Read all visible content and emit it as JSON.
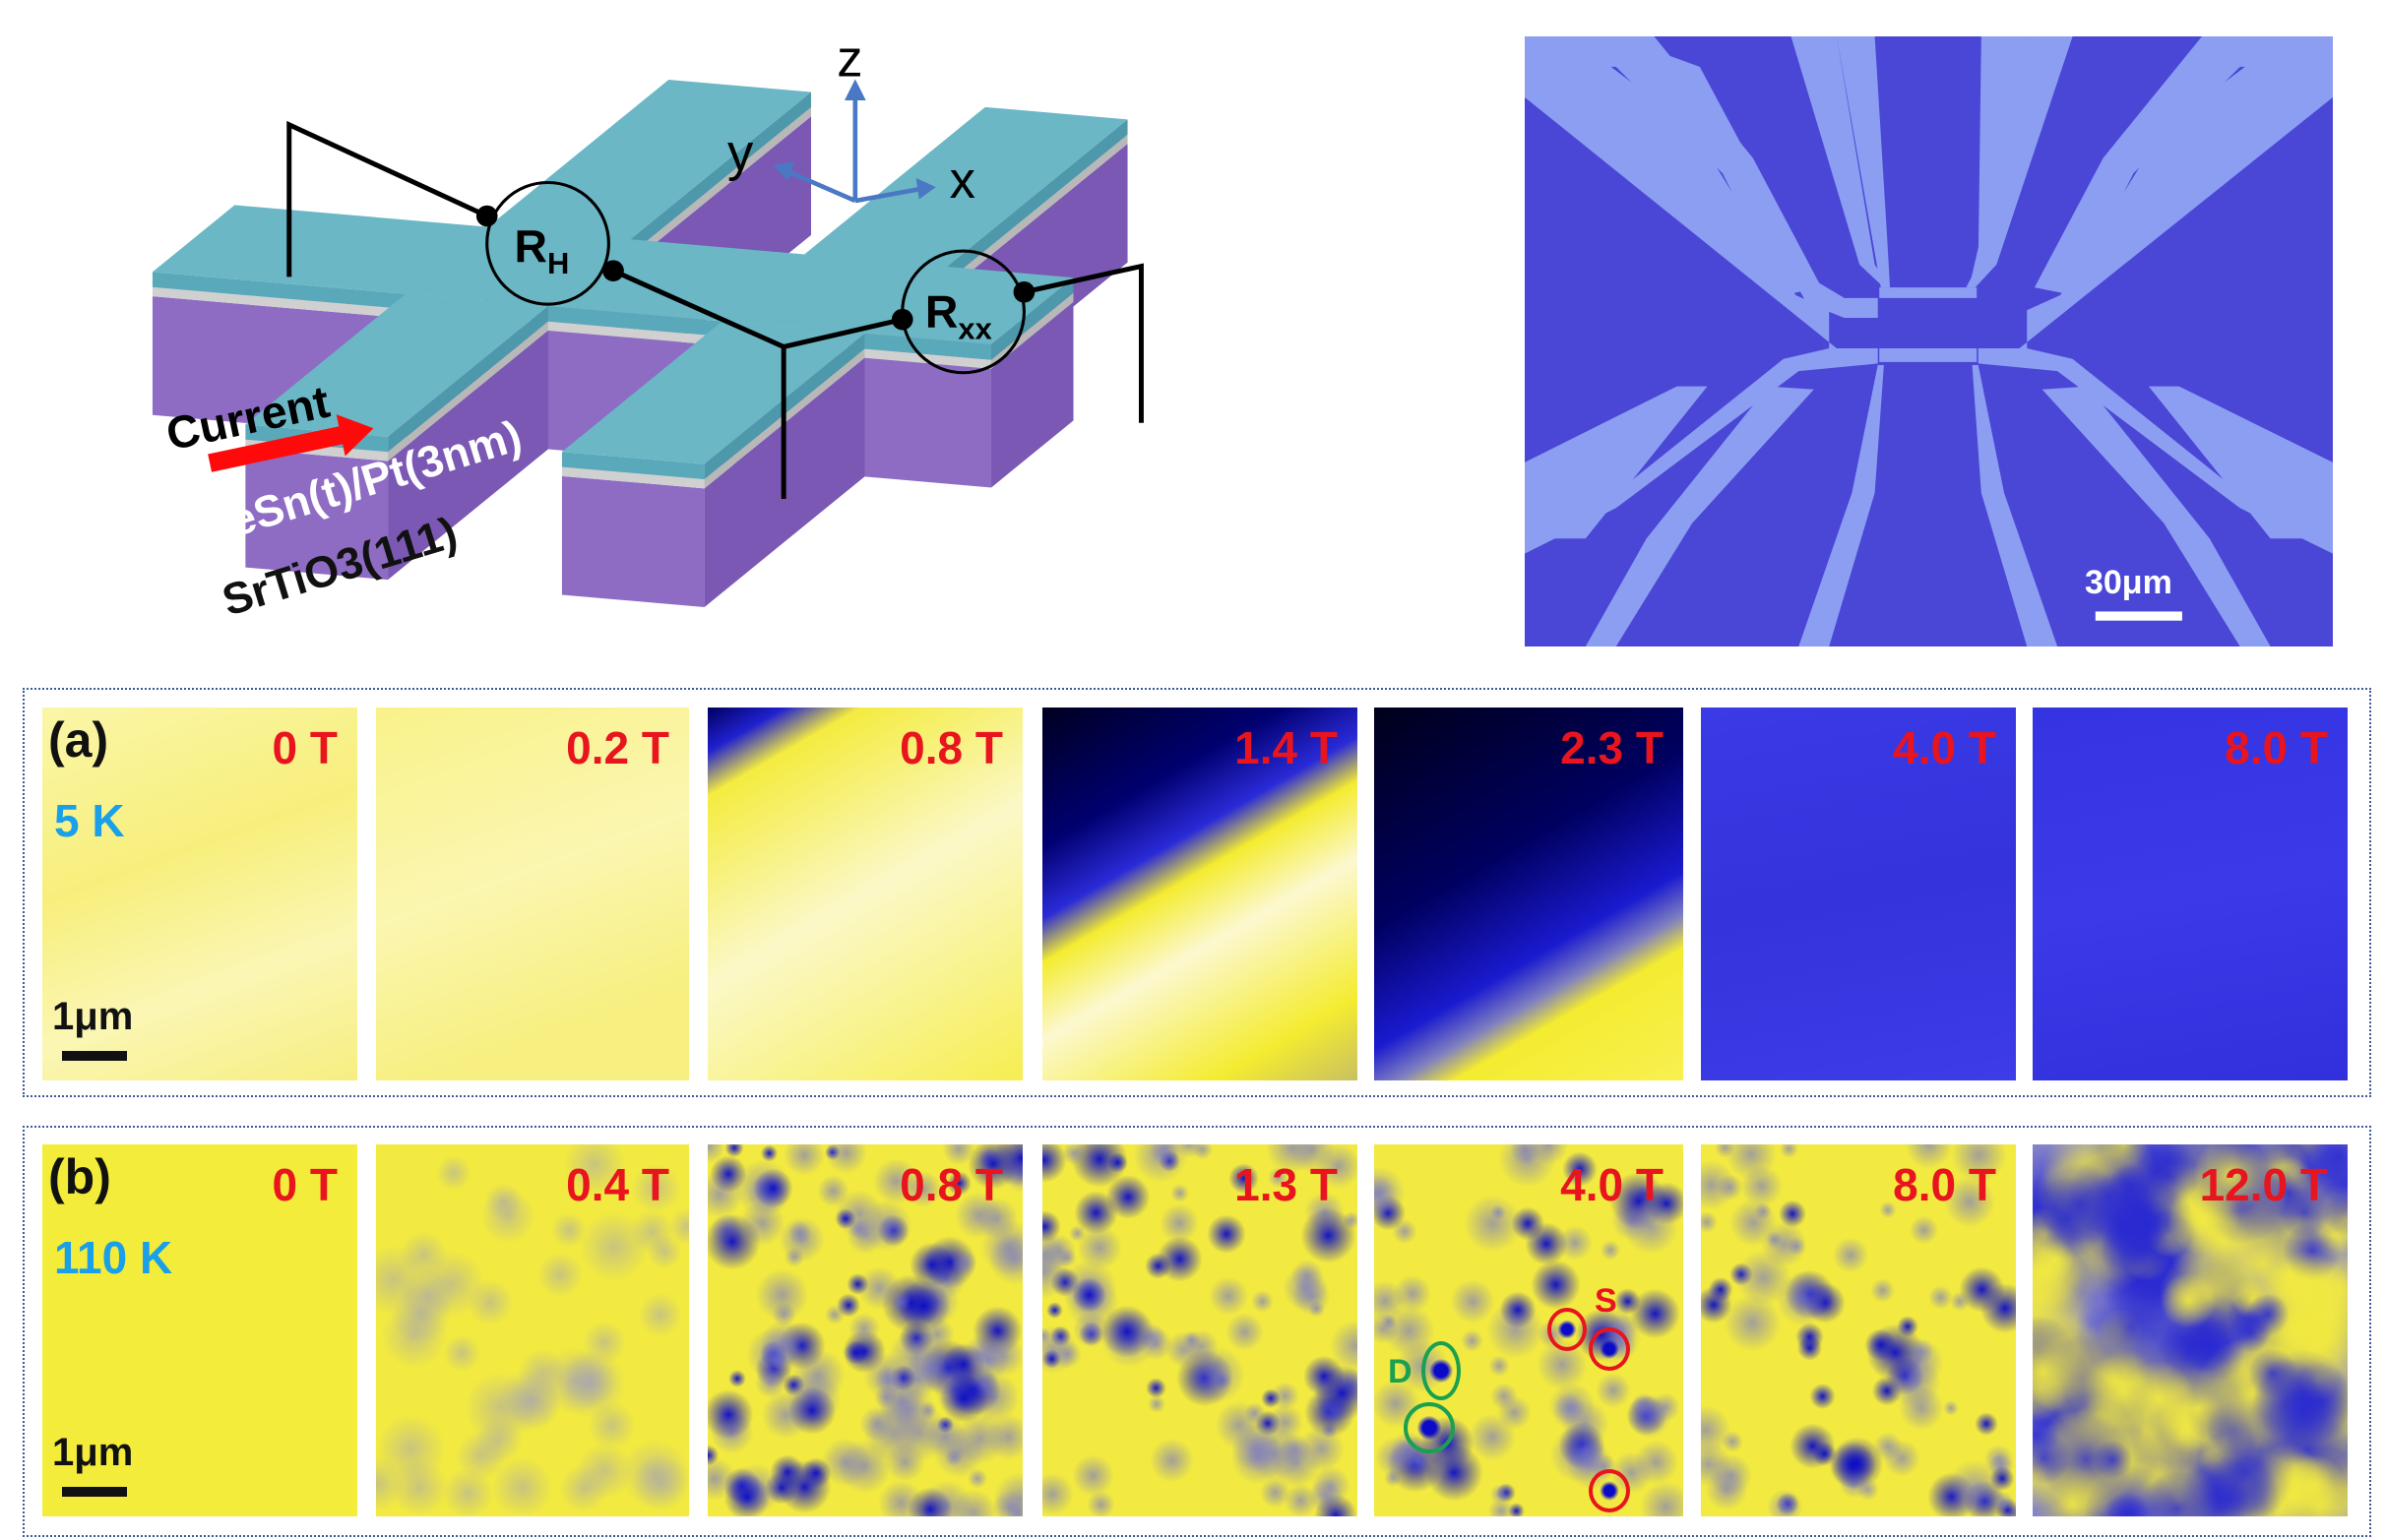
{
  "schematic": {
    "axes": {
      "z": "z",
      "y": "y",
      "x": "x"
    },
    "hall_meter": "R",
    "hall_sub": "H",
    "long_meter": "R",
    "long_sub": "xx",
    "current_label": "Current",
    "film_label": "FeSn(t)/Pt(3nm)",
    "substrate_label": "SrTiO3(111)",
    "colors": {
      "film": "#6bb7c6",
      "substrate": "#8e6cc4",
      "spacer": "#c8c8c8",
      "arrow": "#ff0a0a",
      "axes": "#4a78c4"
    }
  },
  "micrograph": {
    "scalebar_label": "30μm",
    "colors": {
      "background": "#4b47d6",
      "electrode": "#8c9ef2"
    }
  },
  "panels": [
    {
      "label": "(a)",
      "temperature": "5 K",
      "scalebar": "1μm",
      "fields": [
        "0 T",
        "0.2 T",
        "0.8 T",
        "1.4 T",
        "2.3 T",
        "4.0 T",
        "8.0 T"
      ]
    },
    {
      "label": "(b)",
      "temperature": "110 K",
      "scalebar": "1μm",
      "fields": [
        "0 T",
        "0.4 T",
        "0.8 T",
        "1.3 T",
        "4.0 T",
        "8.0 T",
        "12.0 T"
      ],
      "annotations": {
        "domain_label": "D",
        "skyrmion_label": "S"
      }
    }
  ],
  "colors": {
    "field_label": "#e8141e",
    "temperature_label": "#1aa0e8",
    "yellow": "#f6ee3a",
    "blue": "#2f2fe0",
    "dark": "#00004a",
    "annotation_green": "#1aa050",
    "annotation_red": "#e8141e"
  }
}
